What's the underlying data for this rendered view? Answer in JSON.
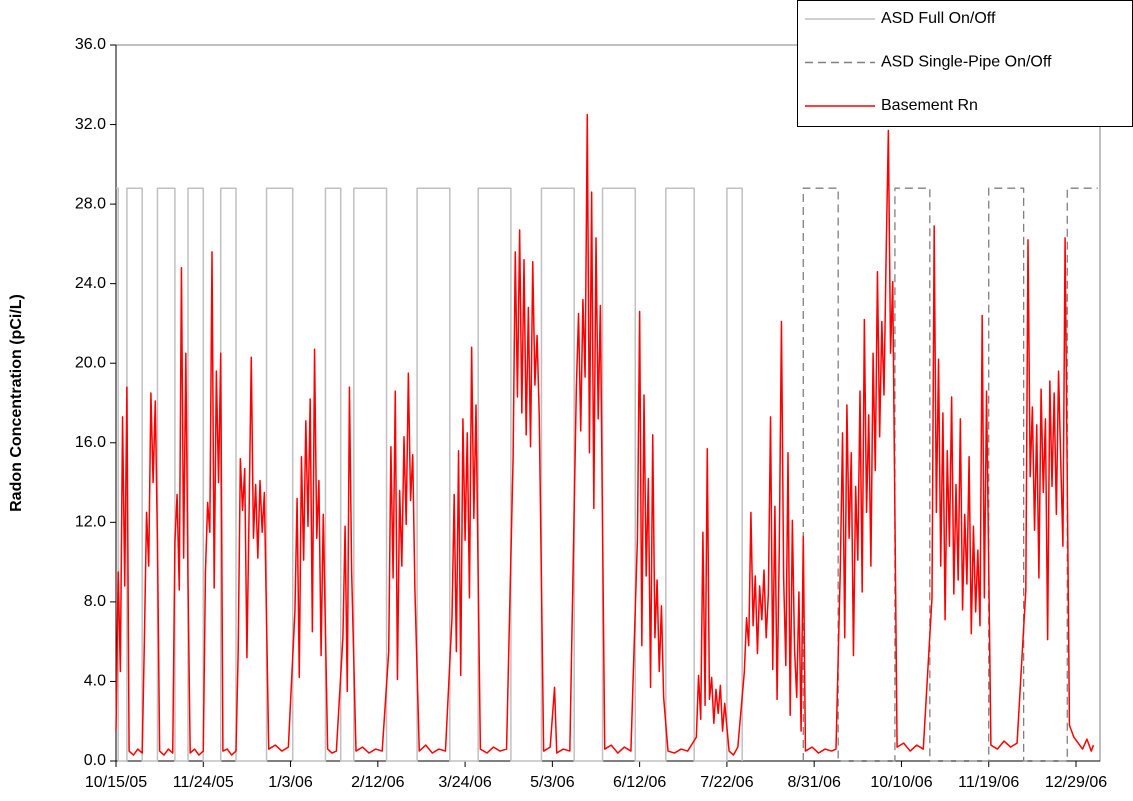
{
  "chart_data": {
    "type": "line",
    "y_label": "Radon Concentration (pCi/L)",
    "xlim": [
      "10/15/05",
      "1/9/07"
    ],
    "xticks": [
      "10/15/05",
      "11/24/05",
      "1/3/06",
      "2/12/06",
      "3/24/06",
      "5/3/06",
      "6/12/06",
      "7/22/06",
      "8/31/06",
      "10/10/06",
      "11/19/06",
      "12/29/06"
    ],
    "ylim": [
      0,
      36
    ],
    "yticks": [
      {
        "value": 0,
        "label": "0.0"
      },
      {
        "value": 4,
        "label": "4.0"
      },
      {
        "value": 8,
        "label": "8.0"
      },
      {
        "value": 12,
        "label": "12.0"
      },
      {
        "value": 16,
        "label": "16.0"
      },
      {
        "value": 20,
        "label": "20.0"
      },
      {
        "value": 24,
        "label": "24.0"
      },
      {
        "value": 28,
        "label": "28.0"
      },
      {
        "value": 32,
        "label": "32.0"
      },
      {
        "value": 36,
        "label": "36.0"
      }
    ],
    "grid": false,
    "legend": "top-right",
    "series": [
      {
        "name": "ASD Full On/Off",
        "color": "#c0c0c0",
        "style": "solid",
        "x": [
          "10/15/05",
          "10/16/05",
          "10/16/05",
          "10/20/05",
          "10/20/05",
          "10/27/05",
          "10/27/05",
          "11/3/05",
          "11/3/05",
          "11/11/05",
          "11/11/05",
          "11/17/05",
          "11/17/05",
          "11/24/05",
          "11/24/05",
          "12/2/05",
          "12/2/05",
          "12/9/05",
          "12/9/05",
          "12/23/05",
          "12/23/05",
          "1/4/06",
          "1/4/06",
          "1/19/06",
          "1/19/06",
          "1/26/06",
          "1/26/06",
          "2/1/06",
          "2/1/06",
          "2/16/06",
          "2/16/06",
          "3/2/06",
          "3/2/06",
          "3/17/06",
          "3/17/06",
          "3/30/06",
          "3/30/06",
          "4/14/06",
          "4/14/06",
          "4/28/06",
          "4/28/06",
          "5/13/06",
          "5/13/06",
          "5/26/06",
          "5/26/06",
          "6/10/06",
          "6/10/06",
          "6/24/06",
          "6/24/06",
          "7/7/06",
          "7/7/06",
          "7/22/06",
          "7/22/06",
          "7/29/06",
          "7/29/06"
        ],
        "values": [
          28.8,
          28.8,
          0,
          0,
          28.8,
          28.8,
          0,
          0,
          28.8,
          28.8,
          0,
          0,
          28.8,
          28.8,
          0,
          0,
          28.8,
          28.8,
          0,
          0,
          28.8,
          28.8,
          0,
          0,
          28.8,
          28.8,
          0,
          0,
          28.8,
          28.8,
          0,
          0,
          28.8,
          28.8,
          0,
          0,
          28.8,
          28.8,
          0,
          0,
          28.8,
          28.8,
          0,
          0,
          28.8,
          28.8,
          0,
          0,
          28.8,
          28.8,
          0,
          0,
          28.8,
          28.8,
          0
        ]
      },
      {
        "name": "ASD Single-Pipe On/Off",
        "color": "#808080",
        "style": "dashed",
        "x": [
          "8/26/06",
          "8/26/06",
          "9/11/06",
          "9/11/06",
          "10/7/06",
          "10/7/06",
          "10/23/06",
          "10/23/06",
          "11/19/06",
          "11/19/06",
          "12/5/06",
          "12/5/06",
          "12/25/06",
          "12/25/06",
          "1/8/07"
        ],
        "values": [
          0,
          28.8,
          28.8,
          0,
          0,
          28.8,
          28.8,
          0,
          0,
          28.8,
          28.8,
          0,
          0,
          28.8,
          28.8
        ]
      },
      {
        "name": "Basement Rn",
        "color": "#ff0000",
        "style": "solid",
        "x": [
          "10/15/05",
          "10/16/05",
          "10/17/05",
          "10/18/05",
          "10/19/05",
          "10/20/05",
          "10/21/05",
          "10/23/05",
          "10/25/05",
          "10/27/05",
          "10/28/05",
          "10/29/05",
          "10/30/05",
          "10/31/05",
          "11/1/05",
          "11/2/05",
          "11/3/05",
          "11/4/05",
          "11/6/05",
          "11/8/05",
          "11/10/05",
          "11/11/05",
          "11/12/05",
          "11/13/05",
          "11/14/05",
          "11/15/05",
          "11/16/05",
          "11/17/05",
          "11/18/05",
          "11/20/05",
          "11/22/05",
          "11/24/05",
          "11/25/05",
          "11/26/05",
          "11/27/05",
          "11/28/05",
          "11/29/05",
          "11/30/05",
          "12/1/05",
          "12/2/05",
          "12/3/05",
          "12/5/05",
          "12/7/05",
          "12/9/05",
          "12/10/05",
          "12/11/05",
          "12/12/05",
          "12/13/05",
          "12/14/05",
          "12/15/05",
          "12/16/05",
          "12/17/05",
          "12/18/05",
          "12/19/05",
          "12/20/05",
          "12/21/05",
          "12/22/05",
          "12/24/05",
          "12/27/05",
          "12/30/05",
          "1/2/06",
          "1/5/06",
          "1/6/06",
          "1/7/06",
          "1/8/06",
          "1/9/06",
          "1/10/06",
          "1/11/06",
          "1/12/06",
          "1/13/06",
          "1/14/06",
          "1/15/06",
          "1/16/06",
          "1/17/06",
          "1/18/06",
          "1/20/06",
          "1/22/06",
          "1/24/06",
          "1/27/06",
          "1/28/06",
          "1/29/06",
          "1/30/06",
          "1/31/06",
          "2/2/06",
          "2/5/06",
          "2/8/06",
          "2/11/06",
          "2/14/06",
          "2/17/06",
          "2/18/06",
          "2/19/06",
          "2/20/06",
          "2/21/06",
          "2/22/06",
          "2/23/06",
          "2/24/06",
          "2/25/06",
          "2/26/06",
          "2/27/06",
          "2/28/06",
          "3/1/06",
          "3/3/06",
          "3/6/06",
          "3/9/06",
          "3/12/06",
          "3/15/06",
          "3/18/06",
          "3/19/06",
          "3/20/06",
          "3/21/06",
          "3/22/06",
          "3/23/06",
          "3/24/06",
          "3/25/06",
          "3/26/06",
          "3/27/06",
          "3/28/06",
          "3/29/06",
          "3/31/06",
          "4/3/06",
          "4/6/06",
          "4/9/06",
          "4/12/06",
          "4/15/06",
          "4/16/06",
          "4/17/06",
          "4/18/06",
          "4/19/06",
          "4/20/06",
          "4/21/06",
          "4/22/06",
          "4/23/06",
          "4/24/06",
          "4/25/06",
          "4/26/06",
          "4/27/06",
          "4/29/06",
          "5/2/06",
          "5/4/06",
          "5/5/06",
          "5/8/06",
          "5/11/06",
          "5/14/06",
          "5/15/06",
          "5/16/06",
          "5/17/06",
          "5/18/06",
          "5/19/06",
          "5/20/06",
          "5/21/06",
          "5/22/06",
          "5/23/06",
          "5/24/06",
          "5/25/06",
          "5/27/06",
          "5/30/06",
          "6/2/06",
          "6/5/06",
          "6/8/06",
          "6/11/06",
          "6/12/06",
          "6/13/06",
          "6/14/06",
          "6/15/06",
          "6/16/06",
          "6/17/06",
          "6/18/06",
          "6/19/06",
          "6/20/06",
          "6/21/06",
          "6/22/06",
          "6/23/06",
          "6/25/06",
          "6/28/06",
          "7/1/06",
          "7/4/06",
          "7/8/06",
          "7/9/06",
          "7/10/06",
          "7/11/06",
          "7/12/06",
          "7/13/06",
          "7/14/06",
          "7/15/06",
          "7/16/06",
          "7/17/06",
          "7/18/06",
          "7/19/06",
          "7/20/06",
          "7/21/06",
          "7/23/06",
          "7/25/06",
          "7/27/06",
          "7/30/06",
          "7/31/06",
          "8/1/06",
          "8/2/06",
          "8/3/06",
          "8/4/06",
          "8/5/06",
          "8/6/06",
          "8/7/06",
          "8/8/06",
          "8/9/06",
          "8/10/06",
          "8/11/06",
          "8/12/06",
          "8/13/06",
          "8/14/06",
          "8/15/06",
          "8/16/06",
          "8/17/06",
          "8/18/06",
          "8/19/06",
          "8/20/06",
          "8/21/06",
          "8/22/06",
          "8/23/06",
          "8/24/06",
          "8/25/06",
          "8/26/06",
          "8/27/06",
          "8/30/06",
          "9/2/06",
          "9/5/06",
          "9/8/06",
          "9/10/06",
          "9/12/06",
          "9/13/06",
          "9/14/06",
          "9/15/06",
          "9/16/06",
          "9/17/06",
          "9/18/06",
          "9/19/06",
          "9/20/06",
          "9/21/06",
          "9/22/06",
          "9/23/06",
          "9/24/06",
          "9/25/06",
          "9/26/06",
          "9/27/06",
          "9/28/06",
          "9/29/06",
          "9/30/06",
          "10/1/06",
          "10/2/06",
          "10/3/06",
          "10/4/06",
          "10/5/06",
          "10/6/06",
          "10/8/06",
          "10/11/06",
          "10/14/06",
          "10/17/06",
          "10/20/06",
          "10/24/06",
          "10/25/06",
          "10/26/06",
          "10/27/06",
          "10/28/06",
          "10/29/06",
          "10/30/06",
          "10/31/06",
          "11/1/06",
          "11/2/06",
          "11/3/06",
          "11/4/06",
          "11/5/06",
          "11/6/06",
          "11/7/06",
          "11/8/06",
          "11/9/06",
          "11/10/06",
          "11/11/06",
          "11/12/06",
          "11/13/06",
          "11/14/06",
          "11/15/06",
          "11/16/06",
          "11/17/06",
          "11/18/06",
          "11/20/06",
          "11/23/06",
          "11/26/06",
          "11/29/06",
          "12/2/06",
          "12/6/06",
          "12/7/06",
          "12/8/06",
          "12/9/06",
          "12/10/06",
          "12/11/06",
          "12/12/06",
          "12/13/06",
          "12/14/06",
          "12/15/06",
          "12/16/06",
          "12/17/06",
          "12/18/06",
          "12/19/06",
          "12/20/06",
          "12/21/06",
          "12/22/06",
          "12/23/06",
          "12/24/06",
          "12/26/06",
          "12/28/06",
          "12/30/06",
          "1/1/07",
          "1/3/07",
          "1/5/07",
          "1/6/07"
        ],
        "values": [
          1.5,
          9.5,
          4.5,
          17.3,
          8.8,
          18.8,
          0.5,
          0.3,
          0.6,
          0.4,
          6.0,
          12.5,
          9.8,
          18.5,
          14,
          18.1,
          11,
          0.5,
          0.3,
          0.6,
          0.4,
          11,
          13.4,
          8.6,
          24.8,
          10.2,
          20.5,
          9,
          0.4,
          0.6,
          0.3,
          0.5,
          9.5,
          13,
          11.5,
          25.6,
          8.7,
          19.6,
          14,
          20.5,
          0.5,
          0.6,
          0.3,
          0.5,
          5.5,
          15.2,
          12.6,
          14.7,
          5.2,
          12.5,
          20.3,
          11.2,
          13.9,
          10.2,
          14.1,
          11.5,
          13.5,
          0.6,
          0.8,
          0.5,
          0.7,
          7.5,
          13.2,
          4.2,
          15.3,
          10.1,
          17.1,
          11.8,
          18.2,
          6.5,
          20.7,
          11.2,
          14.1,
          5.3,
          12.4,
          0.6,
          0.4,
          0.5,
          6.2,
          11.8,
          3.5,
          18.8,
          9.5,
          0.5,
          0.7,
          0.4,
          0.6,
          0.5,
          5.5,
          15.8,
          9.2,
          18.6,
          4.1,
          13.6,
          9.8,
          16.3,
          11.9,
          19.5,
          13.1,
          15.4,
          8.6,
          0.5,
          0.8,
          0.4,
          0.6,
          0.5,
          7.2,
          13.4,
          5.5,
          15.6,
          4.3,
          17.2,
          11.1,
          16.5,
          8.2,
          20.8,
          12.2,
          17.9,
          0.6,
          0.4,
          0.7,
          0.5,
          0.6,
          15.2,
          25.6,
          18.3,
          26.7,
          17.5,
          25.2,
          16.4,
          22.8,
          15.8,
          25.1,
          18.9,
          21.4,
          17.3,
          0.5,
          0.7,
          3.7,
          0.4,
          0.6,
          0.5,
          18.8,
          22.5,
          16.6,
          23.2,
          19.3,
          32.5,
          15.5,
          28.6,
          12.7,
          26.3,
          17.2,
          22.9,
          0.6,
          0.8,
          0.4,
          0.7,
          0.5,
          11.2,
          22.6,
          5.8,
          18.4,
          9.3,
          14.2,
          3.7,
          16.4,
          6.2,
          9.1,
          4.5,
          7.8,
          3.2,
          0.5,
          0.4,
          0.6,
          0.5,
          1.2,
          4.3,
          2.1,
          11.5,
          2.8,
          15.7,
          3.1,
          4.2,
          1.9,
          3.6,
          2.4,
          3.8,
          1.5,
          2.9,
          0.5,
          0.3,
          0.7,
          4.5,
          7.2,
          5.8,
          12.5,
          6.8,
          9.3,
          5.4,
          8.8,
          7.1,
          9.6,
          6.2,
          8.4,
          17.3,
          4.6,
          12.8,
          3.1,
          10.6,
          22.1,
          9.2,
          4.8,
          15.5,
          2.3,
          12.1,
          5.6,
          3.2,
          8.5,
          1.5,
          11.3,
          0.5,
          0.7,
          0.4,
          0.6,
          0.5,
          0.6,
          9.8,
          16.5,
          6.2,
          17.9,
          11.2,
          15.5,
          5.3,
          13.8,
          10.1,
          18.6,
          8.5,
          22.2,
          12.5,
          17.4,
          9.8,
          20.5,
          14.6,
          24.6,
          16.3,
          22.1,
          18.4,
          25.6,
          31.7,
          20.5,
          24.1,
          0.7,
          0.9,
          0.5,
          0.8,
          0.6,
          8.2,
          26.9,
          12.5,
          20.2,
          9.8,
          17.5,
          7.1,
          15.6,
          10.8,
          18.3,
          8.4,
          13.9,
          9.1,
          17.2,
          7.6,
          12.4,
          8.9,
          15.3,
          6.4,
          11.8,
          7.5,
          10.6,
          6.8,
          22.4,
          8.2,
          18.6,
          0.8,
          0.6,
          1.0,
          0.7,
          0.9,
          8.6,
          26.2,
          14.3,
          17.8,
          11.6,
          16.9,
          9.2,
          18.7,
          13.5,
          17.2,
          6.1,
          19.1,
          13.8,
          18.5,
          12.4,
          19.6,
          15.1,
          10.8,
          26.3,
          1.8,
          1.2,
          0.9,
          0.6,
          1.1,
          0.5,
          0.8
        ]
      }
    ]
  }
}
